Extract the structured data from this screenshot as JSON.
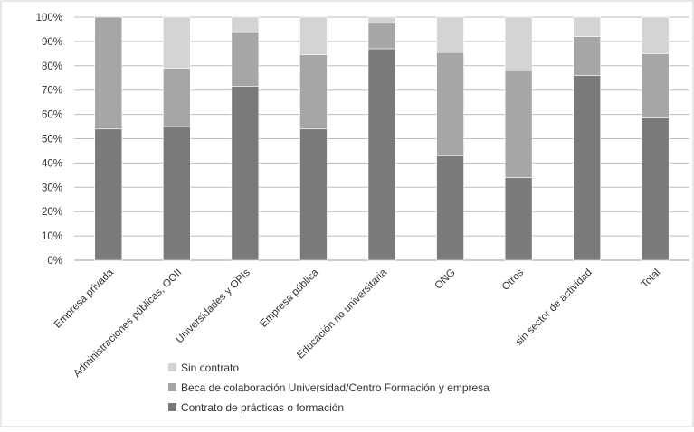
{
  "chart_data": {
    "type": "bar",
    "stacked": true,
    "categories": [
      "Empresa privada",
      "Administraciones públicas, OOII",
      "Universidades y OPIs",
      "Empresa pública",
      "Educación no universitaria",
      "ONG",
      "Otros",
      "sin sector de actividad",
      "Total"
    ],
    "series": [
      {
        "name": "Contrato de prácticas o formación",
        "color": "#7a7a7a",
        "values": [
          54,
          55,
          71.5,
          54,
          87,
          43,
          34,
          76,
          58.5
        ]
      },
      {
        "name": "Beca de colaboración Universidad/Centro Formación y empresa",
        "color": "#a6a6a6",
        "values": [
          46,
          24,
          22.5,
          30.5,
          10.5,
          42.5,
          44,
          16,
          26.5
        ]
      },
      {
        "name": "Sin contrato",
        "color": "#d4d4d4",
        "values": [
          0,
          21,
          6,
          15.5,
          2.5,
          14.5,
          22,
          8,
          15
        ]
      }
    ],
    "yticks": [
      "0%",
      "10%",
      "20%",
      "30%",
      "40%",
      "50%",
      "60%",
      "70%",
      "80%",
      "90%",
      "100%"
    ],
    "ylim": [
      0,
      100
    ],
    "grid": true,
    "legend_position": "bottom",
    "legend_order": [
      "Sin contrato",
      "Beca de colaboración Universidad/Centro Formación y empresa",
      "Contrato de prácticas o formación"
    ]
  }
}
